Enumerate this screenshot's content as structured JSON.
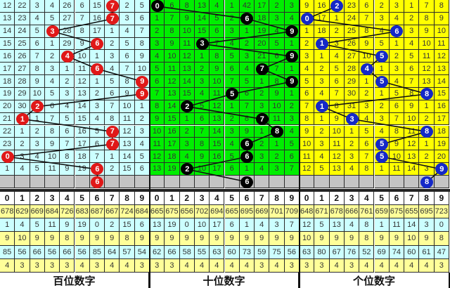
{
  "chart_data": {
    "type": "table",
    "title": "",
    "colors": {
      "hundreds_bg": "#ccffff",
      "tens_bg": "#00ee00",
      "units_bg": "#ffff00",
      "hundreds_ball": "#e01818",
      "tens_ball": "#000000",
      "units_ball": "#1428c8",
      "gray_row": "#c4c4c4",
      "stat_yellow": "#ffff99",
      "stat_cyan": "#ccffff"
    },
    "header_digits": [
      "0",
      "1",
      "2",
      "3",
      "4",
      "5",
      "6",
      "7",
      "8",
      "9"
    ],
    "panels": [
      {
        "label": "百位数字",
        "hits": [
          7,
          7,
          3,
          6,
          4,
          6,
          9,
          9,
          2,
          1,
          7,
          7,
          0,
          6
        ],
        "next": 6,
        "rows": [
          [
            12,
            22,
            3,
            4,
            26,
            6,
            15,
            7,
            2,
            5
          ],
          [
            13,
            23,
            4,
            5,
            27,
            7,
            16,
            7,
            3,
            6
          ],
          [
            14,
            24,
            5,
            3,
            28,
            8,
            17,
            1,
            4,
            7
          ],
          [
            15,
            25,
            6,
            1,
            29,
            9,
            6,
            2,
            5,
            8
          ],
          [
            16,
            26,
            7,
            2,
            4,
            10,
            1,
            3,
            6,
            9
          ],
          [
            17,
            27,
            8,
            3,
            1,
            11,
            6,
            4,
            7,
            10
          ],
          [
            18,
            28,
            9,
            4,
            2,
            12,
            1,
            5,
            8,
            9
          ],
          [
            19,
            29,
            10,
            5,
            3,
            13,
            2,
            6,
            9,
            9
          ],
          [
            20,
            30,
            2,
            6,
            4,
            14,
            3,
            7,
            10,
            1
          ],
          [
            21,
            1,
            1,
            7,
            5,
            15,
            4,
            8,
            11,
            2
          ],
          [
            22,
            1,
            2,
            8,
            6,
            16,
            5,
            7,
            12,
            3
          ],
          [
            23,
            2,
            3,
            9,
            7,
            17,
            6,
            7,
            13,
            4
          ],
          [
            0,
            3,
            4,
            10,
            8,
            18,
            7,
            1,
            14,
            5
          ],
          [
            1,
            4,
            5,
            11,
            9,
            19,
            6,
            2,
            15,
            6
          ]
        ],
        "stats": [
          [
            678,
            629,
            669,
            684,
            726,
            683,
            687,
            667,
            724,
            684
          ],
          [
            1,
            4,
            5,
            11,
            9,
            19,
            0,
            2,
            15,
            6
          ],
          [
            9,
            10,
            9,
            9,
            8,
            9,
            9,
            9,
            8,
            9
          ],
          [
            85,
            56,
            66,
            56,
            66,
            56,
            85,
            64,
            57,
            54
          ],
          [
            4,
            3,
            3,
            3,
            3,
            4,
            3,
            4,
            4,
            3
          ]
        ]
      },
      {
        "label": "十位数字",
        "hits": [
          0,
          6,
          9,
          3,
          9,
          7,
          9,
          5,
          2,
          7,
          8,
          6,
          6,
          2
        ],
        "next": 6,
        "rows": [
          [
            0,
            6,
            8,
            13,
            4,
            1,
            42,
            17,
            2,
            3
          ],
          [
            1,
            7,
            9,
            14,
            5,
            2,
            6,
            18,
            3,
            4
          ],
          [
            2,
            8,
            10,
            15,
            6,
            3,
            1,
            19,
            4,
            9
          ],
          [
            3,
            9,
            11,
            3,
            7,
            4,
            2,
            20,
            5,
            1
          ],
          [
            4,
            10,
            12,
            1,
            8,
            5,
            3,
            21,
            6,
            9
          ],
          [
            5,
            11,
            13,
            2,
            9,
            6,
            4,
            7,
            7,
            1
          ],
          [
            6,
            12,
            14,
            3,
            10,
            7,
            5,
            1,
            8,
            9
          ],
          [
            7,
            13,
            15,
            4,
            11,
            5,
            6,
            2,
            9,
            1
          ],
          [
            8,
            14,
            2,
            5,
            12,
            1,
            7,
            3,
            10,
            2
          ],
          [
            9,
            15,
            1,
            6,
            13,
            2,
            8,
            7,
            11,
            3
          ],
          [
            10,
            16,
            2,
            7,
            14,
            3,
            9,
            1,
            8,
            4
          ],
          [
            11,
            17,
            3,
            8,
            15,
            4,
            6,
            2,
            1,
            5
          ],
          [
            12,
            18,
            4,
            9,
            16,
            5,
            6,
            3,
            2,
            6
          ],
          [
            13,
            19,
            2,
            10,
            17,
            6,
            1,
            4,
            3,
            7
          ]
        ],
        "stats": [
          [
            665,
            675,
            656,
            702,
            694,
            665,
            695,
            669,
            701,
            709
          ],
          [
            13,
            19,
            0,
            10,
            17,
            6,
            1,
            4,
            3,
            7
          ],
          [
            9,
            9,
            9,
            9,
            9,
            9,
            9,
            9,
            9,
            9
          ],
          [
            62,
            66,
            58,
            55,
            63,
            60,
            73,
            59,
            75,
            56
          ],
          [
            3,
            3,
            4,
            4,
            4,
            4,
            4,
            3,
            4,
            3
          ]
        ]
      },
      {
        "label": "个位数字",
        "hits": [
          2,
          0,
          6,
          1,
          5,
          4,
          5,
          8,
          1,
          3,
          8,
          5,
          5,
          9
        ],
        "next": 8,
        "rows": [
          [
            9,
            16,
            2,
            23,
            6,
            2,
            3,
            1,
            7,
            8
          ],
          [
            0,
            17,
            1,
            24,
            7,
            3,
            4,
            2,
            8,
            9
          ],
          [
            1,
            18,
            2,
            25,
            8,
            4,
            6,
            3,
            9,
            10
          ],
          [
            2,
            1,
            3,
            26,
            9,
            5,
            1,
            4,
            10,
            11
          ],
          [
            3,
            1,
            4,
            27,
            10,
            5,
            2,
            5,
            11,
            12
          ],
          [
            4,
            2,
            5,
            28,
            4,
            1,
            3,
            6,
            12,
            13
          ],
          [
            5,
            3,
            6,
            29,
            1,
            5,
            4,
            7,
            13,
            14
          ],
          [
            6,
            4,
            7,
            30,
            2,
            1,
            5,
            8,
            8,
            15
          ],
          [
            7,
            1,
            8,
            31,
            3,
            2,
            6,
            9,
            1,
            16
          ],
          [
            8,
            1,
            9,
            3,
            4,
            3,
            7,
            10,
            2,
            17
          ],
          [
            9,
            2,
            10,
            1,
            5,
            4,
            8,
            11,
            8,
            18
          ],
          [
            10,
            3,
            11,
            2,
            6,
            5,
            9,
            12,
            1,
            19
          ],
          [
            11,
            4,
            12,
            3,
            7,
            5,
            10,
            13,
            2,
            20
          ],
          [
            12,
            5,
            13,
            4,
            8,
            1,
            11,
            14,
            3,
            9
          ]
        ],
        "stats": [
          [
            648,
            671,
            678,
            666,
            761,
            659,
            675,
            655,
            695,
            723
          ],
          [
            12,
            5,
            13,
            4,
            8,
            1,
            11,
            14,
            3,
            0
          ],
          [
            10,
            9,
            9,
            9,
            8,
            9,
            9,
            10,
            9,
            8
          ],
          [
            63,
            80,
            67,
            76,
            52,
            69,
            74,
            60,
            61,
            47
          ],
          [
            3,
            3,
            4,
            3,
            4,
            4,
            4,
            4,
            4,
            3
          ]
        ]
      }
    ]
  }
}
